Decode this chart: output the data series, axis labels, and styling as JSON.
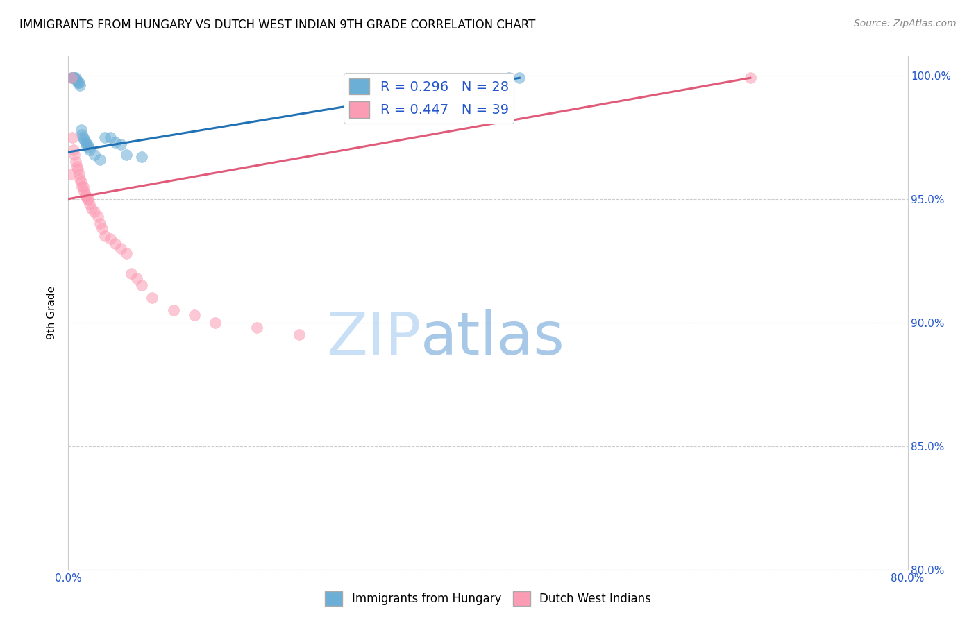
{
  "title": "IMMIGRANTS FROM HUNGARY VS DUTCH WEST INDIAN 9TH GRADE CORRELATION CHART",
  "source": "Source: ZipAtlas.com",
  "ylabel": "9th Grade",
  "xlim": [
    0.0,
    0.8
  ],
  "ylim": [
    0.8,
    1.008
  ],
  "xticks": [
    0.0,
    0.1,
    0.2,
    0.3,
    0.4,
    0.5,
    0.6,
    0.7,
    0.8
  ],
  "xticklabels": [
    "0.0%",
    "",
    "",
    "",
    "",
    "",
    "",
    "",
    "80.0%"
  ],
  "yticks": [
    0.8,
    0.85,
    0.9,
    0.95,
    1.0
  ],
  "yticklabels": [
    "80.0%",
    "85.0%",
    "90.0%",
    "95.0%",
    "100.0%"
  ],
  "blue_color": "#6baed6",
  "pink_color": "#fc9cb4",
  "blue_line_color": "#2171b5",
  "pink_line_color": "#e05a7a",
  "watermark_color": "#dce9f7",
  "R_blue": 0.296,
  "N_blue": 28,
  "R_pink": 0.447,
  "N_pink": 39,
  "blue_scatter_x": [
    0.003,
    0.004,
    0.005,
    0.006,
    0.007,
    0.008,
    0.009,
    0.01,
    0.011,
    0.012,
    0.013,
    0.014,
    0.015,
    0.016,
    0.017,
    0.018,
    0.019,
    0.02,
    0.025,
    0.03,
    0.035,
    0.04,
    0.045,
    0.05,
    0.055,
    0.07,
    0.42,
    0.43
  ],
  "blue_scatter_y": [
    0.999,
    0.999,
    0.999,
    0.999,
    0.999,
    0.998,
    0.997,
    0.997,
    0.996,
    0.978,
    0.976,
    0.975,
    0.974,
    0.973,
    0.972,
    0.972,
    0.971,
    0.97,
    0.968,
    0.966,
    0.975,
    0.975,
    0.973,
    0.972,
    0.968,
    0.967,
    0.999,
    0.999
  ],
  "pink_scatter_x": [
    0.002,
    0.003,
    0.004,
    0.005,
    0.006,
    0.007,
    0.008,
    0.009,
    0.01,
    0.011,
    0.012,
    0.013,
    0.014,
    0.015,
    0.016,
    0.017,
    0.018,
    0.019,
    0.02,
    0.022,
    0.025,
    0.028,
    0.03,
    0.032,
    0.035,
    0.04,
    0.045,
    0.05,
    0.055,
    0.06,
    0.065,
    0.07,
    0.08,
    0.1,
    0.12,
    0.14,
    0.18,
    0.22,
    0.65
  ],
  "pink_scatter_y": [
    0.96,
    0.999,
    0.975,
    0.97,
    0.968,
    0.965,
    0.963,
    0.962,
    0.96,
    0.958,
    0.957,
    0.955,
    0.955,
    0.953,
    0.952,
    0.951,
    0.95,
    0.95,
    0.948,
    0.946,
    0.945,
    0.943,
    0.94,
    0.938,
    0.935,
    0.934,
    0.932,
    0.93,
    0.928,
    0.92,
    0.918,
    0.915,
    0.91,
    0.905,
    0.903,
    0.9,
    0.898,
    0.895,
    0.999
  ],
  "blue_trend_x": [
    0.0,
    0.43
  ],
  "blue_trend_y": [
    0.969,
    0.999
  ],
  "pink_trend_x": [
    0.0,
    0.65
  ],
  "pink_trend_y": [
    0.95,
    0.999
  ]
}
